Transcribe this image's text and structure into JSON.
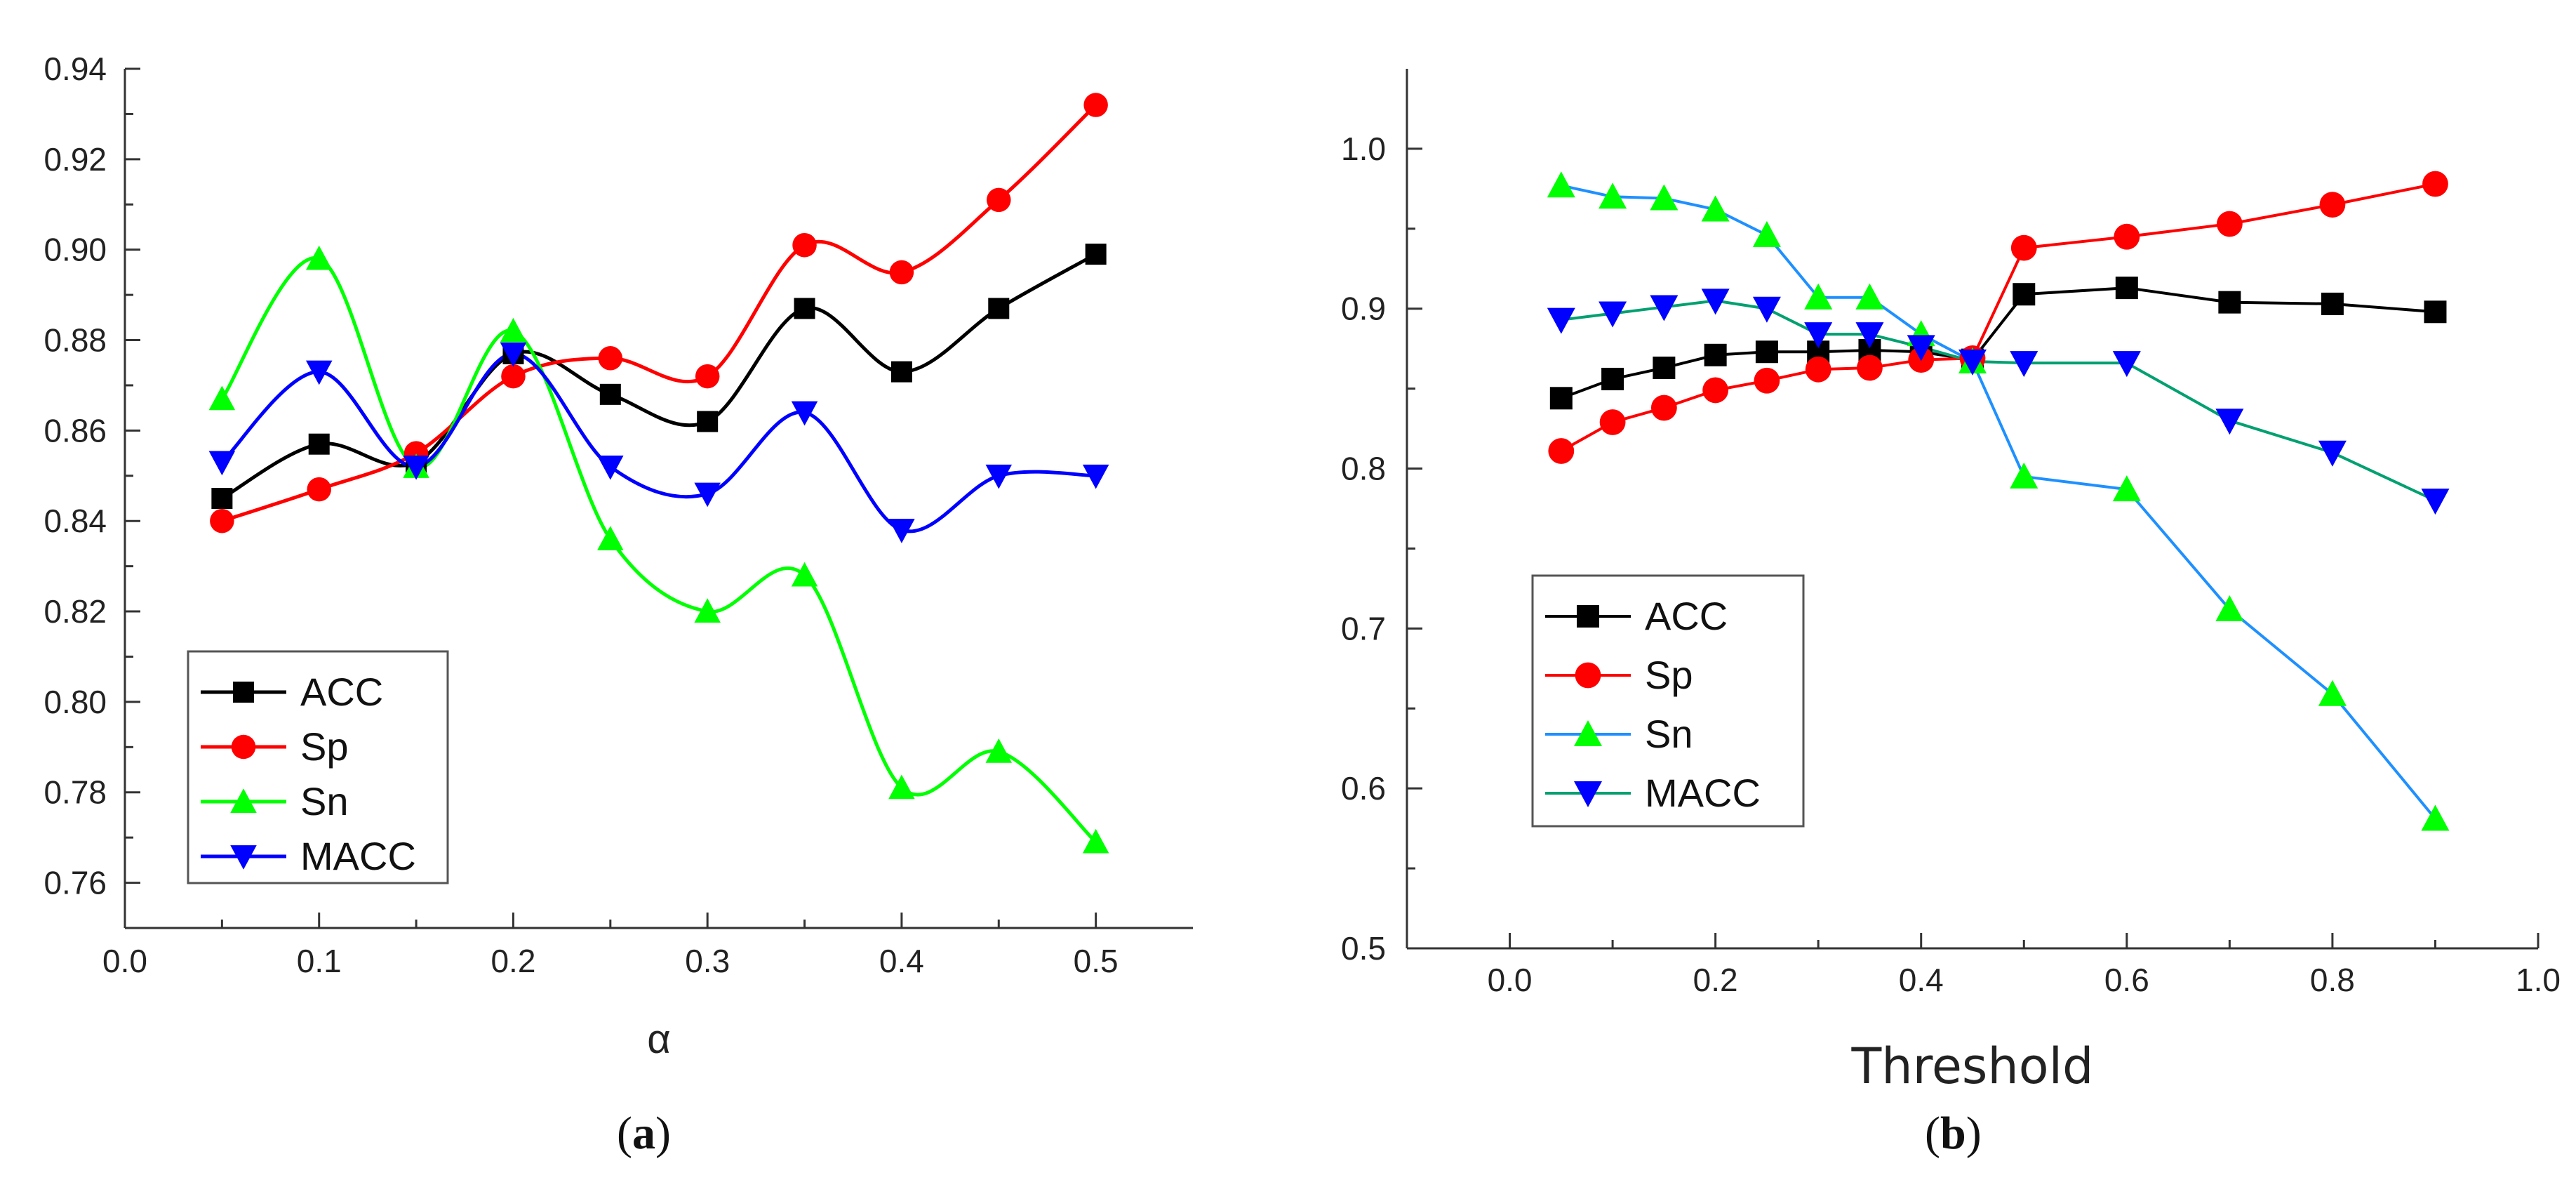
{
  "chart_data": [
    {
      "type": "line",
      "panel": "a",
      "caption_open": "(",
      "caption_letter": "a",
      "caption_close": ")",
      "xlabel": "α",
      "ylabel": "",
      "xlim": [
        0.0,
        0.55
      ],
      "ylim": [
        0.75,
        0.94
      ],
      "x_ticks": [
        0.0,
        0.1,
        0.2,
        0.3,
        0.4,
        0.5
      ],
      "x_tick_labels": [
        "0.0",
        "0.1",
        "0.2",
        "0.3",
        "0.4",
        "0.5"
      ],
      "y_ticks": [
        0.76,
        0.78,
        0.8,
        0.82,
        0.84,
        0.86,
        0.88,
        0.9,
        0.92,
        0.94
      ],
      "y_tick_labels": [
        "0.76",
        "0.78",
        "0.80",
        "0.82",
        "0.84",
        "0.86",
        "0.88",
        "0.90",
        "0.92",
        "0.94"
      ],
      "smooth": true,
      "legend_position": "bottom-left",
      "x": [
        0.05,
        0.1,
        0.15,
        0.2,
        0.25,
        0.3,
        0.35,
        0.4,
        0.45,
        0.5
      ],
      "series": [
        {
          "name": "ACC",
          "color": "#000000",
          "marker": "square",
          "values": [
            0.845,
            0.857,
            0.853,
            0.877,
            0.868,
            0.862,
            0.887,
            0.873,
            0.887,
            0.899
          ]
        },
        {
          "name": "Sp",
          "color": "#ff0000",
          "marker": "circle",
          "values": [
            0.84,
            0.847,
            0.855,
            0.872,
            0.876,
            0.872,
            0.901,
            0.895,
            0.911,
            0.932
          ]
        },
        {
          "name": "Sn",
          "color": "#00ff00",
          "marker": "triangle-up",
          "values": [
            0.867,
            0.898,
            0.852,
            0.882,
            0.836,
            0.82,
            0.828,
            0.781,
            0.789,
            0.769
          ]
        },
        {
          "name": "MACC",
          "color": "#0000ff",
          "marker": "triangle-down",
          "values": [
            0.853,
            0.873,
            0.852,
            0.877,
            0.852,
            0.846,
            0.864,
            0.838,
            0.85,
            0.85
          ]
        }
      ]
    },
    {
      "type": "line",
      "panel": "b",
      "caption_open": "(",
      "caption_letter": "b",
      "caption_close": ")",
      "xlabel": "Threshold",
      "ylabel": "",
      "xlim": [
        -0.1,
        1.0
      ],
      "ylim": [
        0.5,
        1.05
      ],
      "x_ticks": [
        0.0,
        0.2,
        0.4,
        0.6,
        0.8,
        1.0
      ],
      "x_tick_labels": [
        "0.0",
        "0.2",
        "0.4",
        "0.6",
        "0.8",
        "1.0"
      ],
      "y_ticks": [
        0.5,
        0.6,
        0.7,
        0.8,
        0.9,
        1.0
      ],
      "y_tick_labels": [
        "0.5",
        "0.6",
        "0.7",
        "0.8",
        "0.9",
        "1.0"
      ],
      "smooth": false,
      "legend_position": "bottom-left",
      "x": [
        0.05,
        0.1,
        0.15,
        0.2,
        0.25,
        0.3,
        0.35,
        0.4,
        0.45,
        0.5,
        0.6,
        0.7,
        0.8,
        0.9
      ],
      "series": [
        {
          "name": "ACC",
          "color": "#000000",
          "marker": "square",
          "values": [
            0.844,
            0.856,
            0.863,
            0.871,
            0.873,
            0.873,
            0.874,
            0.873,
            0.868,
            0.909,
            0.913,
            0.904,
            0.903,
            0.898
          ]
        },
        {
          "name": "Sp",
          "color": "#ff0000",
          "marker": "circle",
          "values": [
            0.811,
            0.829,
            0.838,
            0.849,
            0.855,
            0.862,
            0.863,
            0.868,
            0.869,
            0.938,
            0.945,
            0.953,
            0.965,
            0.978
          ]
        },
        {
          "name": "Sn",
          "color": "#1e90ff",
          "marker_color": "#00ff00",
          "marker": "triangle-up",
          "values": [
            0.977,
            0.97,
            0.969,
            0.962,
            0.946,
            0.907,
            0.907,
            0.884,
            0.867,
            0.795,
            0.787,
            0.712,
            0.659,
            0.581
          ]
        },
        {
          "name": "MACC",
          "color": "#00a070",
          "marker_color": "#0000ff",
          "marker": "triangle-down",
          "values": [
            0.893,
            0.897,
            0.901,
            0.905,
            0.9,
            0.884,
            0.884,
            0.876,
            0.867,
            0.866,
            0.866,
            0.83,
            0.81,
            0.78
          ]
        }
      ]
    }
  ]
}
